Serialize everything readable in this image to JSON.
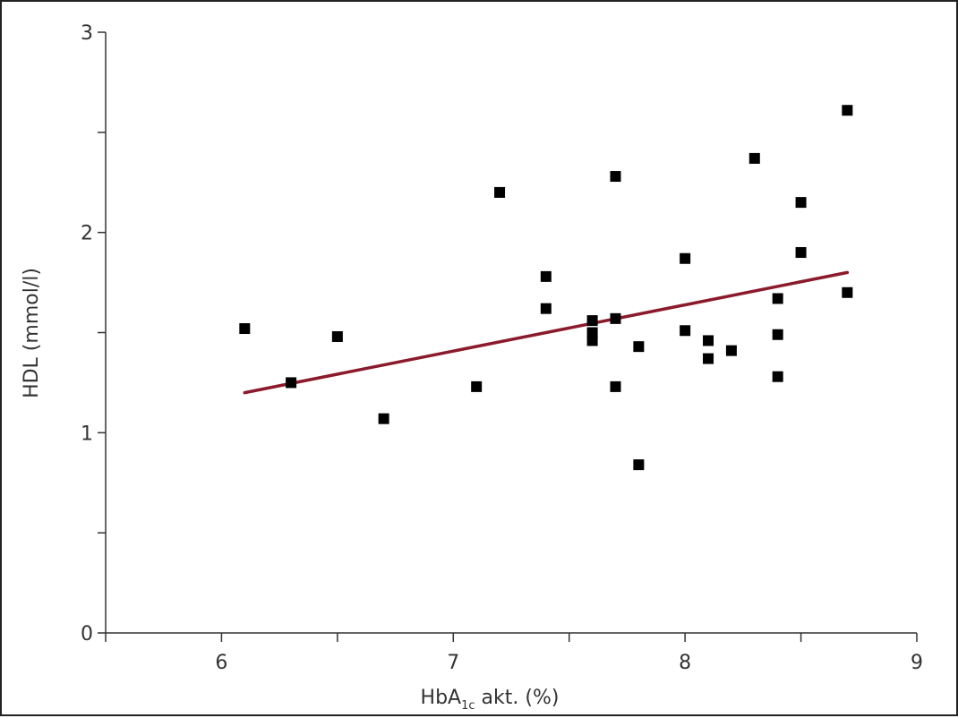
{
  "chart_data": {
    "type": "scatter",
    "xlabel_main": "HbA",
    "xlabel_sub": "1c",
    "xlabel_rest": " akt. (%)",
    "ylabel": "HDL (mmol/l)",
    "xlim": [
      5.5,
      9
    ],
    "ylim": [
      0,
      3
    ],
    "x_ticks": [
      6,
      7,
      8,
      9
    ],
    "y_ticks": [
      0,
      1,
      2,
      3
    ],
    "x_minor_ticks": [
      5.5,
      6.5,
      7.5,
      8.5
    ],
    "y_minor_ticks": [
      0.5,
      1.5,
      2.5
    ],
    "grid": false,
    "marker_color": "#000000",
    "trend_color": "#8b1a2b",
    "points": [
      {
        "x": 6.1,
        "y": 1.52
      },
      {
        "x": 6.3,
        "y": 1.25
      },
      {
        "x": 6.5,
        "y": 1.48
      },
      {
        "x": 6.7,
        "y": 1.07
      },
      {
        "x": 7.1,
        "y": 1.23
      },
      {
        "x": 7.2,
        "y": 2.2
      },
      {
        "x": 7.4,
        "y": 1.78
      },
      {
        "x": 7.4,
        "y": 1.62
      },
      {
        "x": 7.6,
        "y": 1.56
      },
      {
        "x": 7.6,
        "y": 1.5
      },
      {
        "x": 7.6,
        "y": 1.46
      },
      {
        "x": 7.7,
        "y": 2.28
      },
      {
        "x": 7.7,
        "y": 1.57
      },
      {
        "x": 7.7,
        "y": 1.23
      },
      {
        "x": 7.8,
        "y": 1.43
      },
      {
        "x": 7.8,
        "y": 0.84
      },
      {
        "x": 8.0,
        "y": 1.87
      },
      {
        "x": 8.0,
        "y": 1.51
      },
      {
        "x": 8.1,
        "y": 1.46
      },
      {
        "x": 8.1,
        "y": 1.37
      },
      {
        "x": 8.2,
        "y": 1.41
      },
      {
        "x": 8.3,
        "y": 2.37
      },
      {
        "x": 8.4,
        "y": 1.67
      },
      {
        "x": 8.4,
        "y": 1.49
      },
      {
        "x": 8.4,
        "y": 1.28
      },
      {
        "x": 8.5,
        "y": 2.15
      },
      {
        "x": 8.5,
        "y": 1.9
      },
      {
        "x": 8.7,
        "y": 2.61
      },
      {
        "x": 8.7,
        "y": 1.7
      }
    ],
    "trend_line": {
      "x": [
        6.1,
        8.7
      ],
      "y": [
        1.2,
        1.8
      ]
    }
  }
}
